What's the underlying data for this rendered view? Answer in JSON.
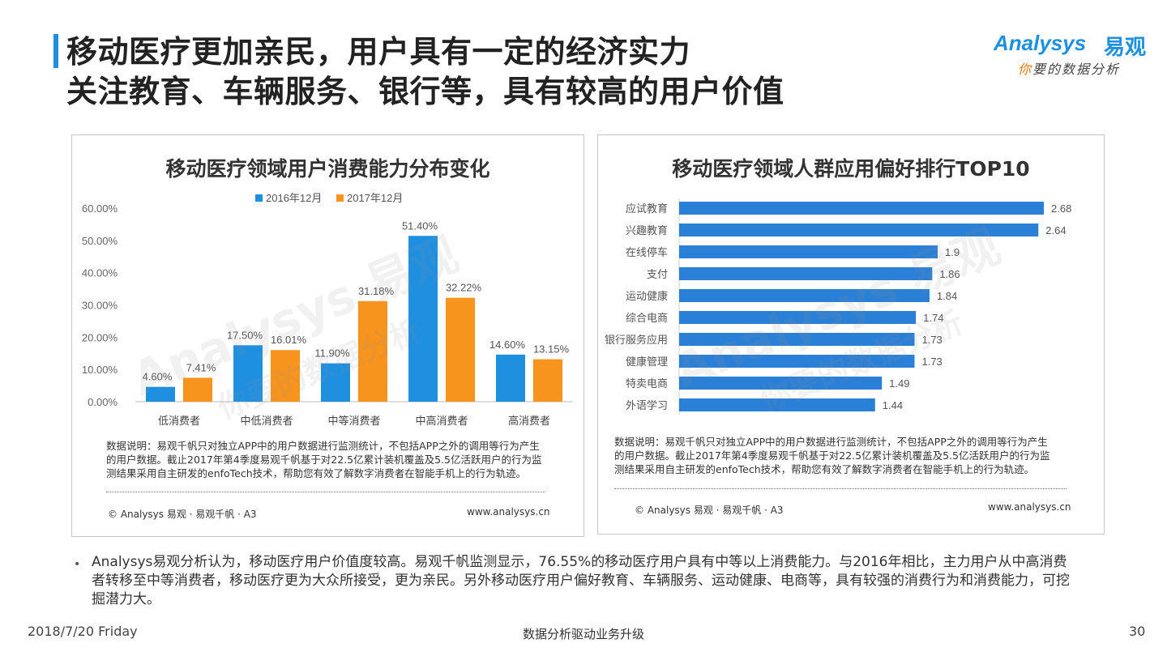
{
  "header": {
    "title_line1": "移动医疗更加亲民，用户具有一定的经济实力",
    "title_line2": "关注教育、车辆服务、银行等，具有较高的用户价值"
  },
  "logo": {
    "brand_en": "Analysys",
    "brand_cn": "易观",
    "tagline_highlight": "你",
    "tagline_rest": "要的数据分析"
  },
  "watermark": {
    "line1": "Analysys 易观",
    "line2": "你要的数据分析"
  },
  "colors": {
    "series_2016": "#1f8fe0",
    "series_2017": "#f7941d",
    "ranking_bar": "#2a7fd6",
    "accent": "#1f8fe0"
  },
  "left_panel": {
    "title": "移动医疗领域用户消费能力分布变化",
    "note": "数据说明：易观千帆只对独立APP中的用户数据进行监测统计，不包括APP之外的调用等行为产生的用户数据。截止2017年第4季度易观千帆基于对22.5亿累计装机覆盖及5.5亿活跃用户的行为监测结果采用自主研发的enfoTech技术，帮助您有效了解数字消费者在智能手机上的行为轨迹。",
    "copyright": "© Analysys 易观 · 易观千帆 · A3",
    "site": "www.analysys.cn"
  },
  "right_panel": {
    "title": "移动医疗领域人群应用偏好排行TOP10",
    "note": "数据说明：易观千帆只对独立APP中的用户数据进行监测统计，不包括APP之外的调用等行为产生的用户数据。截止2017年第4季度易观千帆基于对22.5亿累计装机覆盖及5.5亿活跃用户的行为监测结果采用自主研发的enfoTech技术，帮助您有效了解数字消费者在智能手机上的行为轨迹。",
    "copyright": "© Analysys 易观 · 易观千帆 · A3",
    "site": "www.analysys.cn"
  },
  "chart_data": [
    {
      "type": "bar",
      "title": "移动医疗领域用户消费能力分布变化",
      "categories": [
        "低消费者",
        "中低消费者",
        "中等消费者",
        "中高消费者",
        "高消费者"
      ],
      "series": [
        {
          "name": "2016年12月",
          "values": [
            4.6,
            17.5,
            11.9,
            51.4,
            14.6
          ],
          "labels": [
            "4.60%",
            "17.50%",
            "11.90%",
            "51.40%",
            "14.60%"
          ]
        },
        {
          "name": "2017年12月",
          "values": [
            7.41,
            16.01,
            31.18,
            32.22,
            13.15
          ],
          "labels": [
            "7.41%",
            "16.01%",
            "31.18%",
            "32.22%",
            "13.15%"
          ]
        }
      ],
      "yticks": [
        "0.00%",
        "10.00%",
        "20.00%",
        "30.00%",
        "40.00%",
        "50.00%",
        "60.00%"
      ],
      "ylim": [
        0,
        60
      ],
      "legend": "top"
    },
    {
      "type": "bar",
      "orientation": "horizontal",
      "title": "移动医疗领域人群应用偏好排行TOP10",
      "categories": [
        "应试教育",
        "兴趣教育",
        "在线停车",
        "支付",
        "运动健康",
        "综合电商",
        "银行服务应用",
        "健康管理",
        "特卖电商",
        "外语学习"
      ],
      "values": [
        2.68,
        2.64,
        1.9,
        1.86,
        1.84,
        1.74,
        1.73,
        1.73,
        1.49,
        1.44
      ],
      "labels": [
        "2.68",
        "2.64",
        "1.9",
        "1.86",
        "1.84",
        "1.74",
        "1.73",
        "1.73",
        "1.49",
        "1.44"
      ],
      "xlim": [
        0,
        2.68
      ]
    }
  ],
  "summary": "Analysys易观分析认为，移动医疗用户价值度较高。易观千帆监测显示，76.55%的移动医疗用户具有中等以上消费能力。与2016年相比，主力用户从中高消费者转移至中等消费者，移动医疗更为大众所接受，更为亲民。另外移动医疗用户偏好教育、车辆服务、运动健康、电商等，具有较强的消费行为和消费能力，可挖掘潜力大。",
  "footer": {
    "date": "2018/7/20 Friday",
    "slogan": "数据分析驱动业务升级",
    "page": "30"
  }
}
